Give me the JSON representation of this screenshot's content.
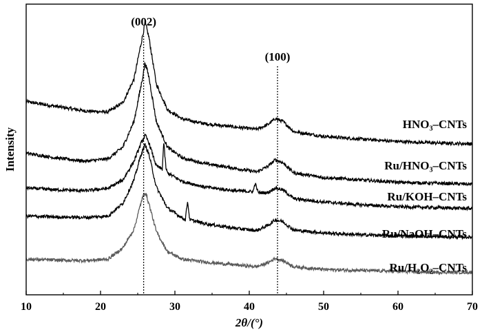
{
  "chart_data": {
    "type": "line",
    "title": "",
    "xlabel": "2θ/(°)",
    "ylabel": "Intensity",
    "xlim": [
      10,
      70
    ],
    "x_ticks": [
      10,
      20,
      30,
      40,
      50,
      60,
      70
    ],
    "y_ticks_shown": false,
    "grid": false,
    "legend": "labels placed on right, above each trace",
    "reference_lines": [
      {
        "x": 25.8,
        "label": "(002)"
      },
      {
        "x": 43.8,
        "label": "(100)"
      }
    ],
    "series": [
      {
        "name": "HNO₃–CNTs",
        "color": "#000000",
        "x": [
          10,
          14,
          18,
          21,
          23,
          24.5,
          25.5,
          26,
          26.5,
          27.5,
          29,
          31,
          34,
          38,
          41,
          42.5,
          43.5,
          44.5,
          46,
          50,
          55,
          60,
          65,
          70
        ],
        "y": [
          4.72,
          4.62,
          4.52,
          4.5,
          4.7,
          5.2,
          6.0,
          6.4,
          6.1,
          5.1,
          4.55,
          4.35,
          4.25,
          4.18,
          4.13,
          4.23,
          4.36,
          4.3,
          4.08,
          3.98,
          3.92,
          3.87,
          3.84,
          3.82
        ]
      },
      {
        "name": "Ru/HNO₃–CNTs",
        "color": "#000000",
        "x": [
          10,
          14,
          18,
          21,
          23,
          24.5,
          25.5,
          26,
          26.5,
          27.5,
          29,
          31,
          34,
          38,
          41,
          42.5,
          43.5,
          44.5,
          46,
          50,
          55,
          60,
          65,
          70
        ],
        "y": [
          3.62,
          3.52,
          3.45,
          3.5,
          3.75,
          4.3,
          5.1,
          5.55,
          5.25,
          4.3,
          3.75,
          3.52,
          3.4,
          3.3,
          3.22,
          3.34,
          3.48,
          3.42,
          3.2,
          3.1,
          3.05,
          3.0,
          2.98,
          2.96
        ]
      },
      {
        "name": "Ru/KOH–CNTs",
        "color": "#000000",
        "x": [
          10,
          14,
          18,
          21,
          23,
          24.5,
          25.5,
          26,
          26.5,
          27.5,
          28.3,
          28.5,
          28.8,
          29,
          31,
          34,
          38,
          40.5,
          40.8,
          41.2,
          42.5,
          43.5,
          44.5,
          46,
          50,
          55,
          60,
          65,
          70
        ],
        "y": [
          2.88,
          2.84,
          2.82,
          2.87,
          3.05,
          3.45,
          3.85,
          4.0,
          3.85,
          3.35,
          3.28,
          3.85,
          3.3,
          3.2,
          3.02,
          2.9,
          2.82,
          2.8,
          2.98,
          2.78,
          2.78,
          2.88,
          2.84,
          2.65,
          2.58,
          2.52,
          2.48,
          2.46,
          2.44
        ]
      },
      {
        "name": "Ru/NaOH–CNTs",
        "color": "#000000",
        "x": [
          10,
          14,
          18,
          21,
          23,
          24.5,
          25.5,
          26,
          26.5,
          27.5,
          29,
          31.4,
          31.7,
          32,
          34,
          38,
          41,
          42.5,
          43.5,
          44.5,
          46,
          50,
          55,
          60,
          65,
          70
        ],
        "y": [
          2.28,
          2.26,
          2.25,
          2.28,
          2.55,
          3.05,
          3.62,
          3.8,
          3.6,
          2.9,
          2.45,
          2.2,
          2.6,
          2.2,
          2.12,
          2.02,
          1.97,
          2.08,
          2.2,
          2.16,
          1.98,
          1.92,
          1.88,
          1.86,
          1.84,
          1.83
        ]
      },
      {
        "name": "Ru/H₂O₂–CNTs",
        "color": "#5a5a5a",
        "x": [
          10,
          14,
          18,
          21,
          23,
          24.5,
          25.5,
          26,
          26.5,
          27.5,
          29,
          31,
          34,
          38,
          41,
          42.5,
          43.5,
          44.5,
          46,
          50,
          55,
          60,
          65,
          70
        ],
        "y": [
          1.36,
          1.34,
          1.33,
          1.36,
          1.6,
          2.0,
          2.6,
          2.8,
          2.55,
          1.95,
          1.52,
          1.36,
          1.3,
          1.24,
          1.2,
          1.28,
          1.38,
          1.33,
          1.2,
          1.14,
          1.12,
          1.1,
          1.08,
          1.08
        ]
      }
    ]
  }
}
